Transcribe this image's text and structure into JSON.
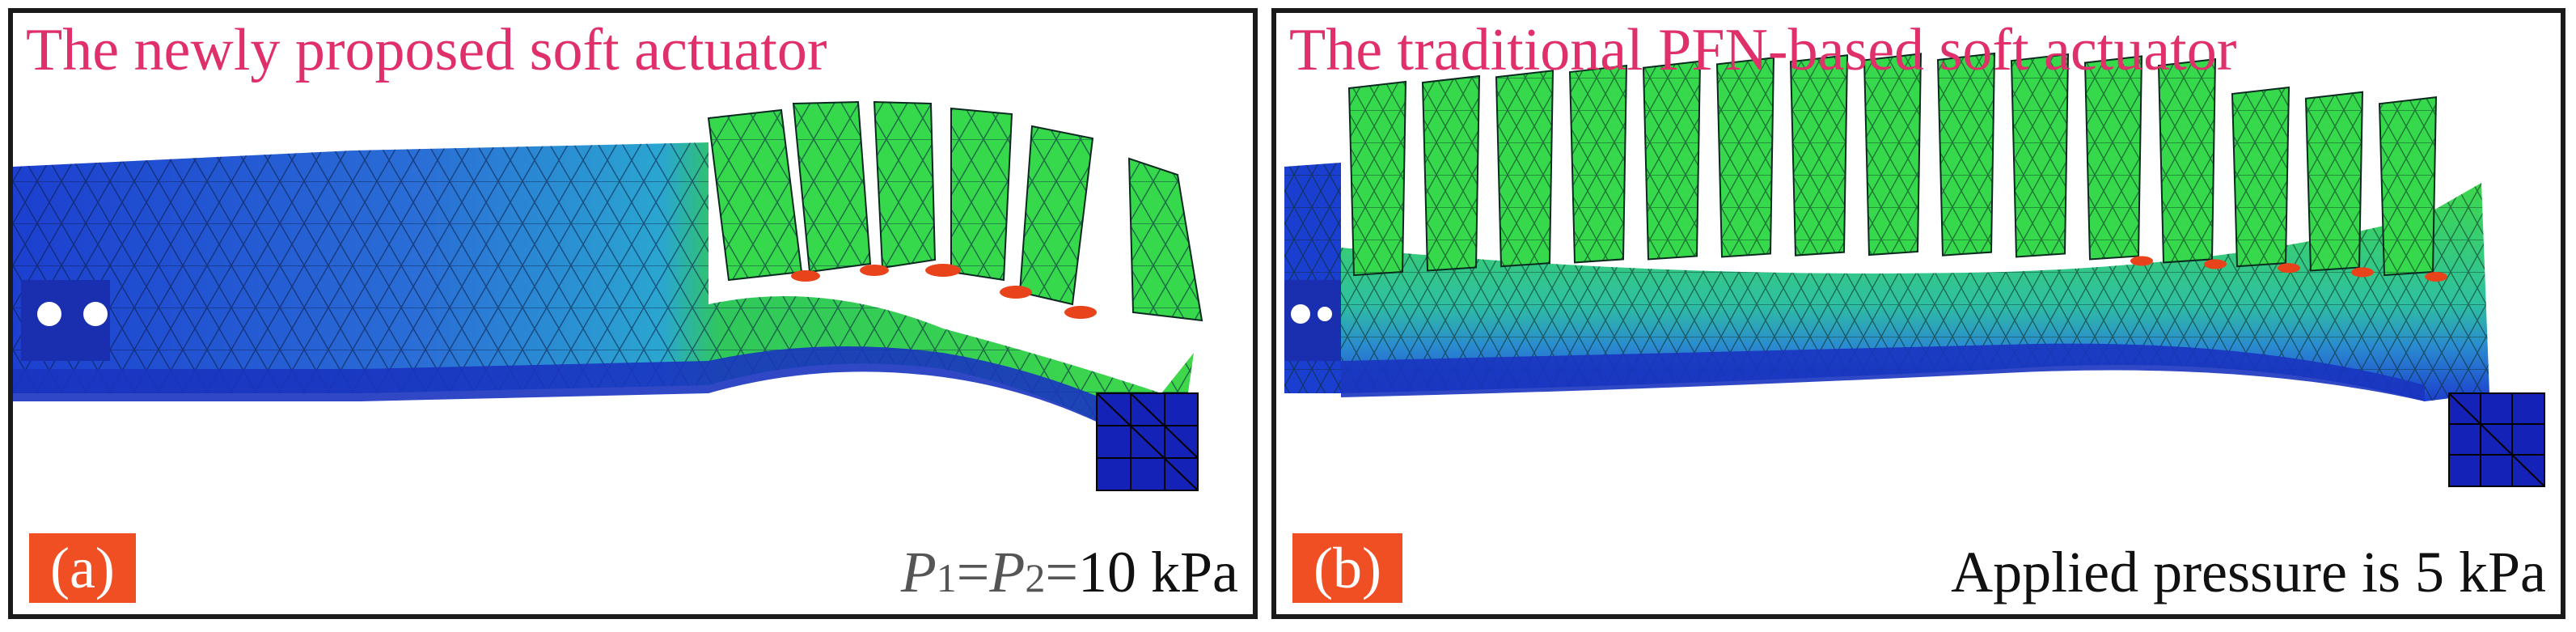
{
  "panels": {
    "a": {
      "title": "The newly proposed soft actuator",
      "label": "(a)",
      "pressure": {
        "p1_symbol": "P",
        "p1_sub": "1",
        "eq1": "=",
        "p2_symbol": "P",
        "p2_sub": "2",
        "eq2": "=",
        "value": "10 kPa"
      }
    },
    "b": {
      "title": "The traditional PFN-based soft actuator",
      "label": "(b)",
      "pressure_text": "Applied pressure is 5 kPa"
    }
  },
  "colors": {
    "title": "#e0306a",
    "label_bg": "#f04e23",
    "mesh_blue": "#1f3fc8",
    "mesh_cyan": "#2ea6c8",
    "mesh_green": "#2ed84a",
    "hot_spot": "#e8431a",
    "block": "#1522b8"
  }
}
